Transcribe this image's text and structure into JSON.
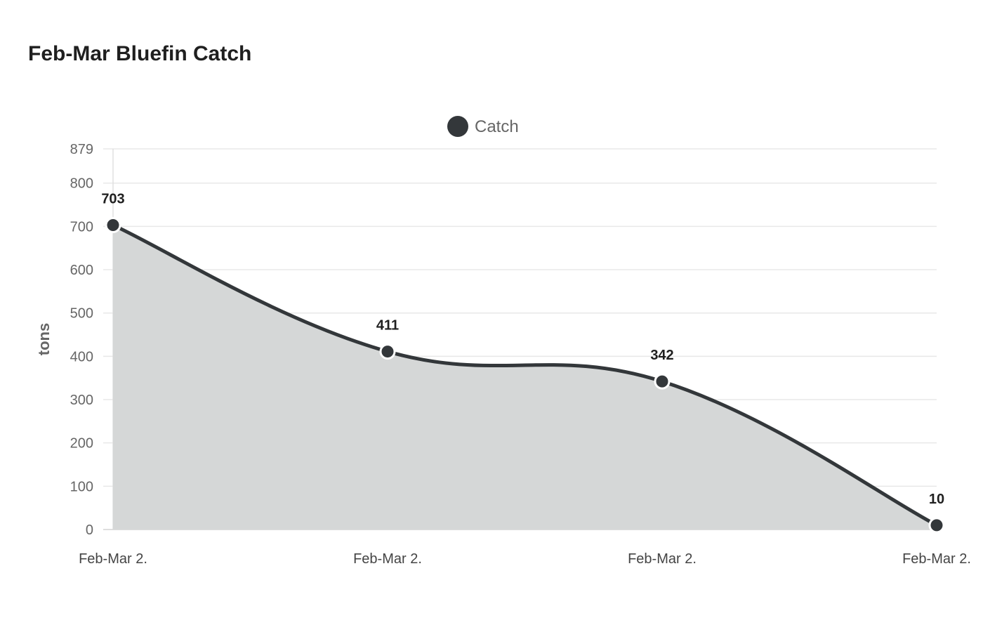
{
  "chart_data": {
    "type": "area",
    "title": "Feb-Mar Bluefin Catch",
    "categories": [
      "Feb-Mar 2.",
      "Feb-Mar 2.",
      "Feb-Mar 2.",
      "Feb-Mar 2."
    ],
    "series": [
      {
        "name": "Catch",
        "values": [
          703,
          411,
          342,
          10
        ],
        "color": "#33373a",
        "fill": "#d5d7d7"
      }
    ],
    "xlabel": "",
    "ylabel": "tons",
    "ylim": [
      0,
      879
    ],
    "yticks": [
      0,
      100,
      200,
      300,
      400,
      500,
      600,
      700,
      800,
      879
    ],
    "grid": true,
    "legend_position": "top",
    "smooth": true,
    "data_labels": true
  }
}
